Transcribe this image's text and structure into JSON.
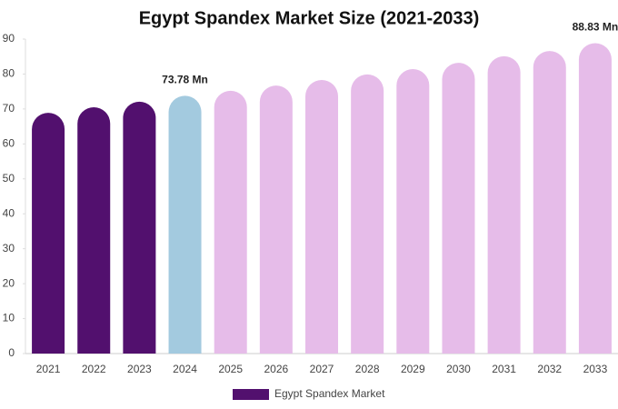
{
  "chart_data": {
    "type": "bar",
    "title": "Egypt Spandex Market Size (2021-2033)",
    "categories": [
      "2021",
      "2022",
      "2023",
      "2024",
      "2025",
      "2026",
      "2027",
      "2028",
      "2029",
      "2030",
      "2031",
      "2032",
      "2033"
    ],
    "series": [
      {
        "name": "Egypt Spandex Market",
        "color": "#52106e",
        "values": [
          68.9,
          70.5,
          72.1,
          73.78,
          75.2,
          76.7,
          78.3,
          79.9,
          81.4,
          83.2,
          85.1,
          86.6,
          88.83
        ],
        "value_labels": [
          null,
          null,
          null,
          "73.78 Mn",
          null,
          null,
          null,
          null,
          null,
          null,
          null,
          null,
          "88.83 Mn"
        ],
        "colors": [
          "#52106e",
          "#52106e",
          "#52106e",
          "#a3cadf",
          "#e6bce9",
          "#e6bce9",
          "#e6bce9",
          "#e6bce9",
          "#e6bce9",
          "#e6bce9",
          "#e6bce9",
          "#e6bce9",
          "#e6bce9"
        ]
      }
    ],
    "ylim": [
      0,
      90
    ],
    "yticks": [
      0,
      10,
      20,
      30,
      40,
      50,
      60,
      70,
      80,
      90
    ],
    "grid": false,
    "legend": "bottom"
  }
}
